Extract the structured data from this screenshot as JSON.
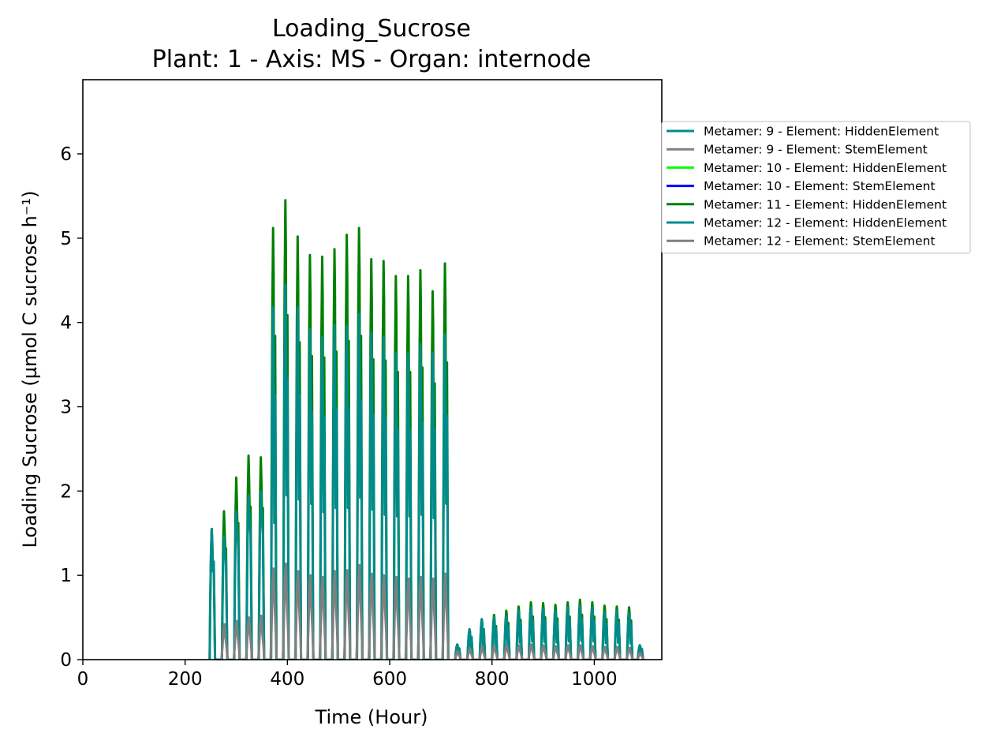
{
  "chart_data": {
    "type": "line",
    "title": "Loading_Sucrose",
    "subtitle": "Plant: 1 - Axis: MS - Organ: internode",
    "xlabel": "Time (Hour)",
    "ylabel": "Loading Sucrose (µmol C sucrose h⁻¹)",
    "xlim": [
      0,
      1132
    ],
    "ylim": [
      0,
      6.88
    ],
    "x_ticks": [
      0,
      200,
      400,
      600,
      800,
      1000
    ],
    "y_ticks": [
      0,
      1,
      2,
      3,
      4,
      5,
      6
    ],
    "grid": false,
    "legend_position": "outside right, top",
    "daily_cycle_hours": 24,
    "series": [
      {
        "name": "Metamer: 9 - Element: HiddenElement",
        "color": "#008b8b",
        "day_peak_hours": [
          253,
          277,
          301,
          325,
          349,
          373,
          397,
          421,
          445,
          469,
          493,
          517,
          541,
          565,
          589,
          613,
          637,
          661,
          685,
          709
        ],
        "day_peak_values": [
          1.55,
          1.46,
          1.76,
          1.95,
          1.99,
          4.18,
          4.45,
          4.18,
          3.92,
          3.83,
          3.97,
          3.96,
          4.1,
          3.88,
          3.83,
          3.64,
          3.63,
          3.74,
          3.64,
          3.86
        ],
        "day_trough_values": [
          1.05,
          1.3,
          1.5,
          1.62,
          1.65,
          1.62,
          1.95,
          1.9,
          1.85,
          1.75,
          1.8,
          1.8,
          1.92,
          1.78,
          1.72,
          1.7,
          1.7,
          1.72,
          1.68,
          1.85
        ]
      },
      {
        "name": "Metamer: 9 - Element: StemElement",
        "color": "#808080",
        "day_peak_hours": [
          277,
          301,
          325,
          349,
          373,
          397,
          421,
          445,
          469,
          493,
          517,
          541,
          565,
          589,
          613,
          637,
          661,
          685,
          709
        ],
        "day_peak_values": [
          0.42,
          0.46,
          0.5,
          0.52,
          1.08,
          1.14,
          1.05,
          1.0,
          0.98,
          1.05,
          1.06,
          1.12,
          1.02,
          1.0,
          0.98,
          0.96,
          0.98,
          0.96,
          1.02
        ]
      },
      {
        "name": "Metamer: 10 - Element: HiddenElement",
        "color": "#00ff00",
        "day_peak_hours": [],
        "day_peak_values": []
      },
      {
        "name": "Metamer: 10 - Element: StemElement",
        "color": "#0000ff",
        "day_peak_hours": [],
        "day_peak_values": []
      },
      {
        "name": "Metamer: 11 - Element: HiddenElement",
        "color": "#008000",
        "day_peak_hours": [
          253,
          277,
          301,
          325,
          349,
          373,
          397,
          421,
          445,
          469,
          493,
          517,
          541,
          565,
          589,
          613,
          637,
          661,
          685,
          709
        ],
        "day_peak_values": [
          1.55,
          1.76,
          2.16,
          2.42,
          2.4,
          5.12,
          5.45,
          5.02,
          4.8,
          4.78,
          4.87,
          5.04,
          5.12,
          4.75,
          4.73,
          4.55,
          4.55,
          4.62,
          4.37,
          4.7
        ]
      },
      {
        "name": "Metamer: 12 - Element: HiddenElement",
        "color": "#008b8b",
        "day_peak_hours": [
          733,
          757,
          781,
          805,
          829,
          853,
          877,
          901,
          925,
          949,
          973,
          997,
          1021,
          1045,
          1069,
          1090
        ],
        "day_peak_values": [
          0.18,
          0.36,
          0.48,
          0.5,
          0.52,
          0.58,
          0.62,
          0.6,
          0.58,
          0.62,
          0.64,
          0.62,
          0.56,
          0.58,
          0.55,
          0.17
        ],
        "green_peak_values": [
          0.18,
          0.36,
          0.48,
          0.53,
          0.58,
          0.63,
          0.68,
          0.67,
          0.65,
          0.68,
          0.71,
          0.68,
          0.64,
          0.63,
          0.62,
          0.17
        ]
      },
      {
        "name": "Metamer: 12 - Element: StemElement",
        "color": "#808080",
        "day_peak_hours": [
          733,
          757,
          781,
          805,
          829,
          853,
          877,
          901,
          925,
          949,
          973,
          997,
          1021,
          1045,
          1069,
          1090
        ],
        "day_peak_values": [
          0.1,
          0.13,
          0.15,
          0.16,
          0.17,
          0.17,
          0.18,
          0.17,
          0.16,
          0.17,
          0.17,
          0.16,
          0.15,
          0.15,
          0.14,
          0.08
        ]
      }
    ]
  }
}
